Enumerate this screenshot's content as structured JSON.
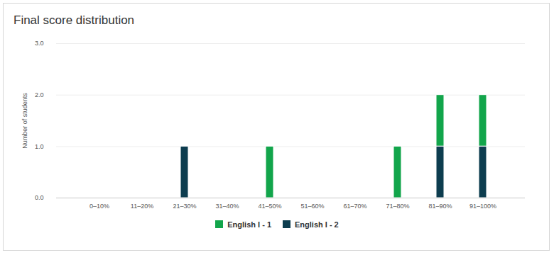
{
  "chart_data": {
    "type": "bar",
    "title": "Final score distribution",
    "y_label": "Number of students",
    "categories": [
      "0–10%",
      "11–20%",
      "21–30%",
      "31–40%",
      "41–50%",
      "51–60%",
      "61–70%",
      "71–80%",
      "81–90%",
      "91–100%"
    ],
    "series": [
      {
        "name": "English I - 1",
        "color": "#12a54b",
        "values": [
          0,
          0,
          0,
          0,
          1,
          0,
          0,
          1,
          1,
          1
        ]
      },
      {
        "name": "English I - 2",
        "color": "#0d3d4f",
        "values": [
          0,
          0,
          1,
          0,
          0,
          0,
          0,
          0,
          1,
          1
        ]
      }
    ],
    "stacked": true,
    "ylim": [
      0,
      3
    ],
    "yticks": [
      0,
      1,
      2,
      3
    ],
    "grid": true,
    "legend": "bottom"
  }
}
